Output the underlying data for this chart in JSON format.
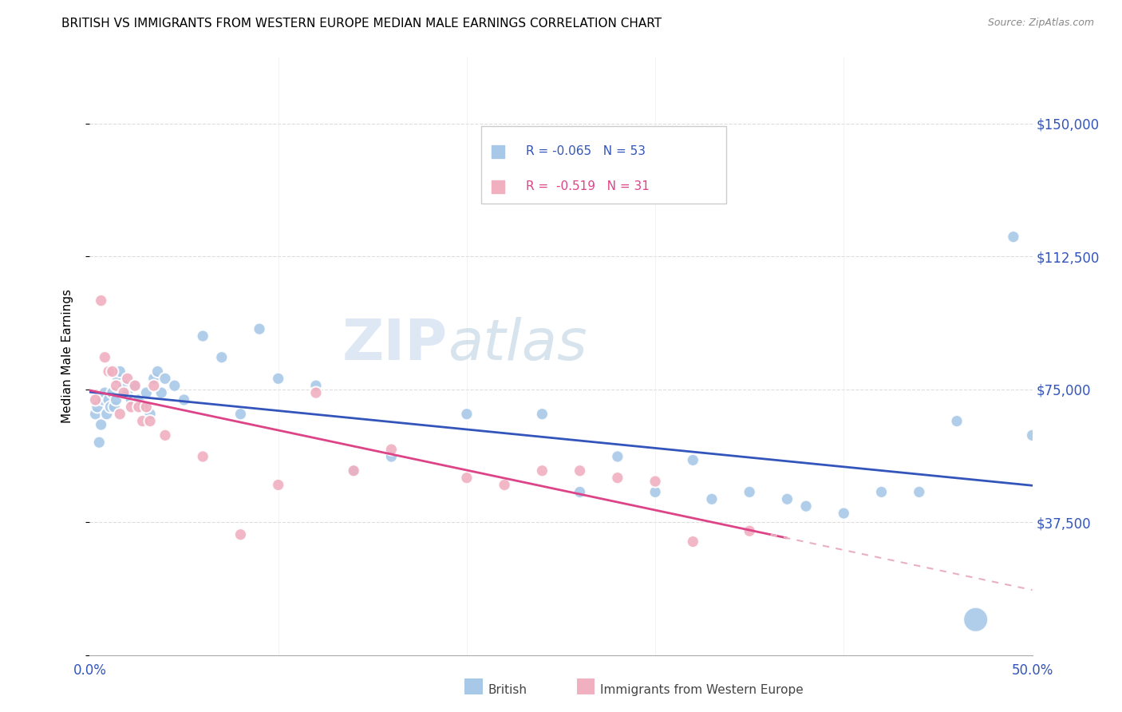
{
  "title": "BRITISH VS IMMIGRANTS FROM WESTERN EUROPE MEDIAN MALE EARNINGS CORRELATION CHART",
  "source": "Source: ZipAtlas.com",
  "ylabel": "Median Male Earnings",
  "y_ticks": [
    0,
    37500,
    75000,
    112500,
    150000
  ],
  "xlim": [
    0.0,
    0.5
  ],
  "ylim": [
    0,
    168750
  ],
  "british_color": "#a8c8e8",
  "british_line_color": "#3355bb",
  "immigrant_color": "#f0b0c0",
  "immigrant_line_color": "#dd4488",
  "immigrant_dash_color": "#e8b0c0",
  "R_british": -0.065,
  "N_british": 53,
  "R_immigrant": -0.519,
  "N_immigrant": 31,
  "watermark_zip": "ZIP",
  "watermark_atlas": "atlas",
  "british_x": [
    0.003,
    0.004,
    0.005,
    0.006,
    0.007,
    0.008,
    0.009,
    0.01,
    0.011,
    0.012,
    0.013,
    0.014,
    0.015,
    0.016,
    0.018,
    0.02,
    0.022,
    0.024,
    0.026,
    0.028,
    0.03,
    0.032,
    0.034,
    0.036,
    0.038,
    0.04,
    0.045,
    0.05,
    0.06,
    0.07,
    0.08,
    0.09,
    0.1,
    0.12,
    0.14,
    0.16,
    0.2,
    0.24,
    0.26,
    0.28,
    0.3,
    0.32,
    0.33,
    0.35,
    0.37,
    0.38,
    0.4,
    0.42,
    0.44,
    0.46,
    0.47,
    0.49,
    0.5
  ],
  "british_y": [
    68000,
    70000,
    60000,
    65000,
    72000,
    74000,
    68000,
    72000,
    70000,
    74000,
    70000,
    72000,
    78000,
    80000,
    76000,
    74000,
    72000,
    76000,
    72000,
    70000,
    74000,
    68000,
    78000,
    80000,
    74000,
    78000,
    76000,
    72000,
    90000,
    84000,
    68000,
    92000,
    78000,
    76000,
    52000,
    56000,
    68000,
    68000,
    46000,
    56000,
    46000,
    55000,
    44000,
    46000,
    44000,
    42000,
    40000,
    46000,
    46000,
    66000,
    10000,
    118000,
    62000
  ],
  "british_size": [
    120,
    120,
    120,
    120,
    120,
    120,
    120,
    120,
    120,
    120,
    120,
    120,
    120,
    120,
    120,
    120,
    120,
    120,
    120,
    120,
    120,
    120,
    120,
    120,
    120,
    120,
    120,
    120,
    120,
    120,
    120,
    120,
    120,
    120,
    120,
    120,
    120,
    120,
    120,
    120,
    120,
    120,
    120,
    120,
    120,
    120,
    120,
    120,
    120,
    120,
    500,
    120,
    120
  ],
  "immigrant_x": [
    0.003,
    0.006,
    0.008,
    0.01,
    0.012,
    0.014,
    0.016,
    0.018,
    0.02,
    0.022,
    0.024,
    0.026,
    0.028,
    0.03,
    0.032,
    0.034,
    0.04,
    0.06,
    0.08,
    0.1,
    0.12,
    0.14,
    0.16,
    0.2,
    0.22,
    0.24,
    0.26,
    0.28,
    0.3,
    0.32,
    0.35
  ],
  "immigrant_y": [
    72000,
    100000,
    84000,
    80000,
    80000,
    76000,
    68000,
    74000,
    78000,
    70000,
    76000,
    70000,
    66000,
    70000,
    66000,
    76000,
    62000,
    56000,
    34000,
    48000,
    74000,
    52000,
    58000,
    50000,
    48000,
    52000,
    52000,
    50000,
    49000,
    32000,
    35000
  ],
  "immigrant_size": [
    120,
    120,
    120,
    120,
    120,
    120,
    120,
    120,
    120,
    120,
    120,
    120,
    120,
    120,
    120,
    120,
    120,
    120,
    120,
    120,
    120,
    120,
    120,
    120,
    120,
    120,
    120,
    120,
    120,
    120,
    120
  ]
}
